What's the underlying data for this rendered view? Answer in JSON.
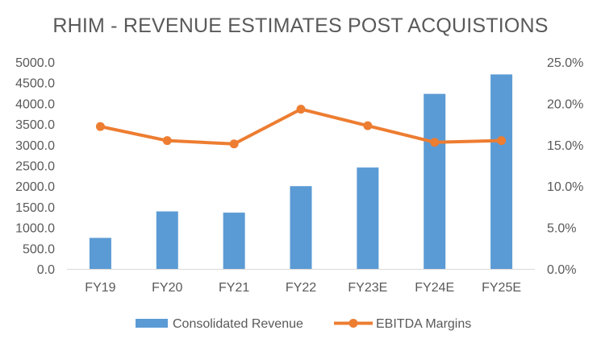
{
  "chart_data": {
    "type": "bar",
    "title": "RHIM - REVENUE ESTIMATES POST ACQUISTIONS",
    "categories": [
      "FY19",
      "FY20",
      "FY21",
      "FY22",
      "FY23E",
      "FY24E",
      "FY25E"
    ],
    "series": [
      {
        "name": "Consolidated Revenue",
        "type": "bar",
        "axis": "left",
        "color": "#5B9BD5",
        "values": [
          750,
          1390,
          1360,
          2000,
          2450,
          4230,
          4700
        ]
      },
      {
        "name": "EBITDA Margins",
        "type": "line",
        "axis": "right",
        "color": "#ED7D31",
        "values": [
          17.2,
          15.5,
          15.1,
          19.3,
          17.3,
          15.3,
          15.5
        ]
      }
    ],
    "y_left": {
      "min": 0,
      "max": 5000,
      "step": 500,
      "tick_labels": [
        "0.0",
        "500.0",
        "1000.0",
        "1500.0",
        "2000.0",
        "2500.0",
        "3000.0",
        "3500.0",
        "4000.0",
        "4500.0",
        "5000.0"
      ]
    },
    "y_right": {
      "min": 0,
      "max": 25,
      "step": 5,
      "tick_labels": [
        "0.0%",
        "5.0%",
        "10.0%",
        "15.0%",
        "20.0%",
        "25.0%"
      ]
    },
    "grid": false,
    "legend": "bottom"
  }
}
